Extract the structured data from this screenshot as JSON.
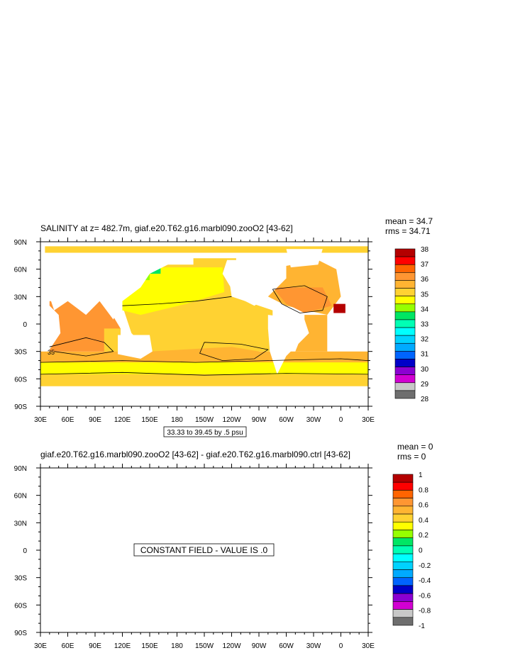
{
  "chart_data": [
    {
      "type": "heatmap",
      "title": "SALINITY at z= 482.7m, giaf.e20.T62.g16.marbl090.zooO2 [43-62]",
      "stats": {
        "mean": "mean = 34.7",
        "rms": "rms = 34.71"
      },
      "x_ticks": [
        "30E",
        "60E",
        "90E",
        "120E",
        "150E",
        "180",
        "150W",
        "120W",
        "90W",
        "60W",
        "30W",
        "0",
        "30E"
      ],
      "y_ticks": [
        "90N",
        "60N",
        "30N",
        "0",
        "30S",
        "60S",
        "90S"
      ],
      "xlim": [
        30,
        390
      ],
      "ylim": [
        -90,
        90
      ],
      "info_label": "33.33 to 39.45 by .5 psu",
      "contour_label": "35",
      "colorbar": {
        "labels": [
          "38",
          "37",
          "36",
          "35",
          "34",
          "33",
          "32",
          "31",
          "30",
          "29",
          "28"
        ],
        "colors": [
          "#b40000",
          "#ff0000",
          "#ff6400",
          "#ff9632",
          "#ffb432",
          "#ffd232",
          "#ffff00",
          "#96ff00",
          "#00e664",
          "#00ffb4",
          "#00ffff",
          "#00d2ff",
          "#00aaff",
          "#0064ff",
          "#0000c8",
          "#8c00d2",
          "#d200d2",
          "#c8c8c8",
          "#6e6e6e"
        ]
      },
      "field_colors": {
        "fresh": "#ffff00",
        "mid": "#ffd232",
        "salty": "#ffb432",
        "saltier": "#ff9632",
        "high": "#ff6400",
        "max": "#b40000",
        "greenish": "#00e664",
        "lime": "#96ff00"
      }
    },
    {
      "type": "heatmap",
      "title": "giaf.e20.T62.g16.marbl090.zooO2 [43-62] - giaf.e20.T62.g16.marbl090.ctrl [43-62]",
      "stats": {
        "mean": "mean = 0",
        "rms": "rms = 0"
      },
      "x_ticks": [
        "30E",
        "60E",
        "90E",
        "120E",
        "150E",
        "180",
        "150W",
        "120W",
        "90W",
        "60W",
        "30W",
        "0",
        "30E"
      ],
      "y_ticks": [
        "90N",
        "60N",
        "30N",
        "0",
        "30S",
        "60S",
        "90S"
      ],
      "xlim": [
        30,
        390
      ],
      "ylim": [
        -90,
        90
      ],
      "message": "CONSTANT FIELD - VALUE IS .0",
      "colorbar": {
        "labels": [
          "1",
          "0.8",
          "0.6",
          "0.4",
          "0.2",
          "0",
          "-0.2",
          "-0.4",
          "-0.6",
          "-0.8",
          "-1"
        ],
        "colors": [
          "#b40000",
          "#ff0000",
          "#ff6400",
          "#ff9632",
          "#ffb432",
          "#ffd232",
          "#ffff00",
          "#96ff00",
          "#00e664",
          "#00ffb4",
          "#00ffff",
          "#00d2ff",
          "#00aaff",
          "#0064ff",
          "#0000c8",
          "#8c00d2",
          "#d200d2",
          "#c8c8c8",
          "#6e6e6e"
        ]
      }
    }
  ]
}
